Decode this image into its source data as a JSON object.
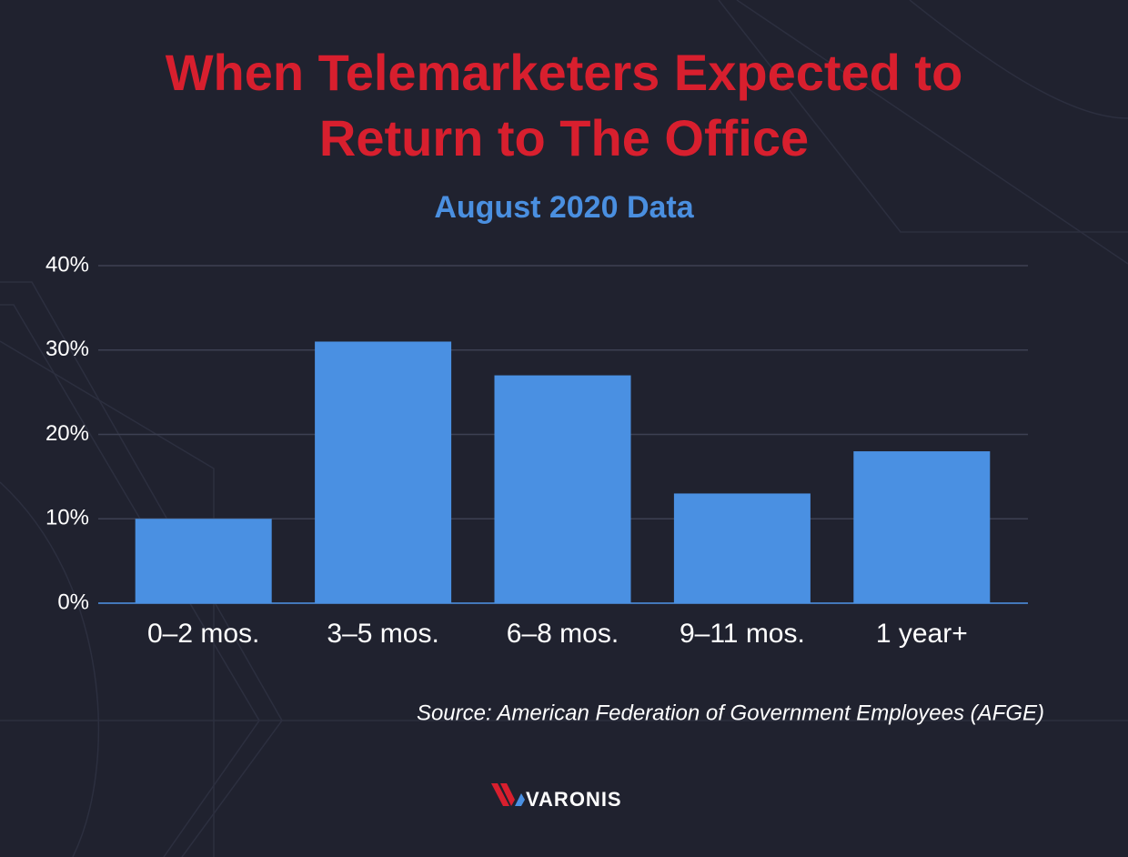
{
  "chart_data": {
    "type": "bar",
    "title": "When Telemarketers Expected to Return to The Office",
    "subtitle": "August 2020 Data",
    "categories": [
      "0–2 mos.",
      "3–5 mos.",
      "6–8 mos.",
      "9–11 mos.",
      "1 year+"
    ],
    "values": [
      10,
      31,
      27,
      13,
      18
    ],
    "color": "#4a90e2",
    "ylim": [
      0,
      40
    ],
    "yticks": [
      {
        "value": 0,
        "label": "0%"
      },
      {
        "value": 10,
        "label": "10%"
      },
      {
        "value": 20,
        "label": "20%"
      },
      {
        "value": 30,
        "label": "30%"
      },
      {
        "value": 40,
        "label": "40%"
      }
    ],
    "grid": true,
    "source": "Source: American Federation of Government Employees (AFGE)"
  },
  "logo": "VARONIS"
}
